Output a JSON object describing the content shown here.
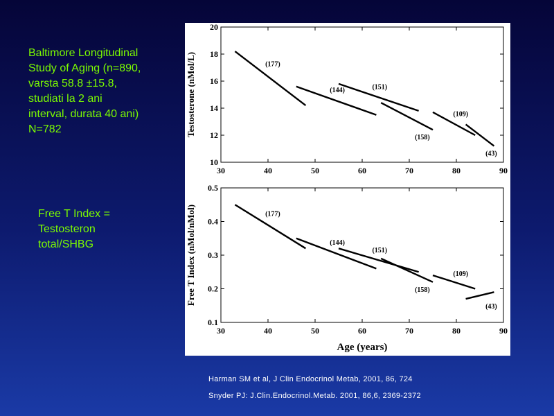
{
  "study_text": [
    "Baltimore Longitudinal",
    "Study of Aging (n=890,",
    "varsta 58.8 ±15.8,",
    "studiati la 2 ani",
    "interval, durata 40 ani)",
    "N=782"
  ],
  "free_t_text": [
    "Free T Index =",
    "Testosteron",
    "total/SHBG"
  ],
  "references": [
    "Harman SM et al, J Clin Endocrinol Metab, 2001, 86,  724",
    "Snyder PJ: J.Clin.Endocrinol.Metab. 2001, 86,6, 2369-2372"
  ],
  "colors": {
    "text_accent": "#7cfc00",
    "reference_text": "#ffffff",
    "figure_bg": "#ffffff",
    "line": "#000000"
  },
  "chart_data": [
    {
      "type": "line",
      "ylabel": "Testosterone (nMol/L)",
      "xlabel": "",
      "xlim": [
        30,
        90
      ],
      "ylim": [
        10,
        20
      ],
      "xticks": [
        30,
        40,
        50,
        60,
        70,
        80,
        90
      ],
      "yticks": [
        10,
        12,
        14,
        16,
        18,
        20
      ],
      "series": [
        {
          "name": "(177)",
          "x": [
            33,
            48
          ],
          "y": [
            18.2,
            14.2
          ]
        },
        {
          "name": "(144)",
          "x": [
            46,
            63
          ],
          "y": [
            15.6,
            13.5
          ]
        },
        {
          "name": "(151)",
          "x": [
            55,
            72
          ],
          "y": [
            15.8,
            13.8
          ]
        },
        {
          "name": "(158)",
          "x": [
            64,
            75
          ],
          "y": [
            14.4,
            12.4
          ]
        },
        {
          "name": "(109)",
          "x": [
            75,
            84
          ],
          "y": [
            13.7,
            12.0
          ]
        },
        {
          "name": "(43)",
          "x": [
            82,
            88
          ],
          "y": [
            12.8,
            11.2
          ]
        }
      ]
    },
    {
      "type": "line",
      "ylabel": "Free T Index (nMol/nMol)",
      "xlabel": "Age (years)",
      "xlim": [
        30,
        90
      ],
      "ylim": [
        0.1,
        0.5
      ],
      "xticks": [
        30,
        40,
        50,
        60,
        70,
        80,
        90
      ],
      "yticks": [
        0.1,
        0.2,
        0.3,
        0.4,
        0.5
      ],
      "series": [
        {
          "name": "(177)",
          "x": [
            33,
            48
          ],
          "y": [
            0.45,
            0.32
          ]
        },
        {
          "name": "(144)",
          "x": [
            46,
            63
          ],
          "y": [
            0.35,
            0.26
          ]
        },
        {
          "name": "(151)",
          "x": [
            55,
            72
          ],
          "y": [
            0.32,
            0.25
          ]
        },
        {
          "name": "(158)",
          "x": [
            64,
            75
          ],
          "y": [
            0.29,
            0.22
          ]
        },
        {
          "name": "(109)",
          "x": [
            75,
            84
          ],
          "y": [
            0.24,
            0.2
          ]
        },
        {
          "name": "(43)",
          "x": [
            82,
            88
          ],
          "y": [
            0.17,
            0.19
          ]
        }
      ]
    }
  ]
}
